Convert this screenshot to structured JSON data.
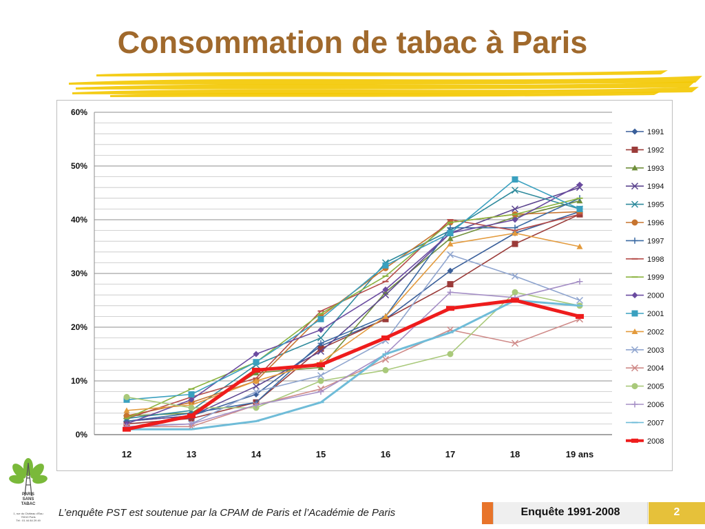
{
  "slide": {
    "title": "Consommation de tabac à Paris",
    "footer_text": "L’enquête PST est soutenue par la CPAM de Paris et l’Académie de Paris",
    "footer_survey": "Enquête 1991-2008",
    "page_number": "2",
    "logo": {
      "line1": "PARIS",
      "line2": "SANS",
      "line3": "TABAC",
      "address": [
        "1, rue du Château d'Eau",
        "75010 Paris",
        "Tél : 01 44 84 29 49"
      ]
    }
  },
  "colors": {
    "title": "#a0692c",
    "brush": "#f3c800",
    "footer_orange": "#e8742a",
    "footer_yellow": "#e6c13a"
  },
  "chart_data": {
    "type": "line",
    "title": "",
    "xlabel": "",
    "ylabel": "",
    "categories": [
      "12",
      "13",
      "14",
      "15",
      "16",
      "17",
      "18",
      "19 ans"
    ],
    "ylim": [
      0,
      60
    ],
    "yticks": [
      0,
      10,
      20,
      30,
      40,
      50,
      60
    ],
    "ytick_labels": [
      "0%",
      "10%",
      "20%",
      "30%",
      "40%",
      "50%",
      "60%"
    ],
    "grid": true,
    "legend": "right",
    "series": [
      {
        "name": "1991",
        "color": "#3a5f9a",
        "marker": "diamond",
        "values": [
          2.5,
          3.5,
          7.5,
          16.5,
          21.5,
          30.5,
          37.5,
          41.5
        ]
      },
      {
        "name": "1992",
        "color": "#9b3b39",
        "marker": "square",
        "values": [
          2.0,
          3.0,
          6.0,
          16.0,
          21.5,
          28.0,
          35.5,
          41.0
        ]
      },
      {
        "name": "1993",
        "color": "#6f8f3a",
        "marker": "triangle",
        "values": [
          3.5,
          4.0,
          11.5,
          12.5,
          26.5,
          36.5,
          40.5,
          43.5
        ]
      },
      {
        "name": "1994",
        "color": "#5d4690",
        "marker": "x",
        "values": [
          2.5,
          3.5,
          9.0,
          15.5,
          26.0,
          37.5,
          42.0,
          46.0
        ]
      },
      {
        "name": "1995",
        "color": "#2e8a9c",
        "marker": "x",
        "values": [
          3.0,
          4.5,
          13.0,
          18.0,
          32.0,
          38.0,
          45.5,
          42.0
        ]
      },
      {
        "name": "1996",
        "color": "#c7742f",
        "marker": "circle",
        "values": [
          3.5,
          6.0,
          10.0,
          22.0,
          31.0,
          39.5,
          41.0,
          41.5
        ]
      },
      {
        "name": "1997",
        "color": "#3b6aa3",
        "marker": "plus",
        "values": [
          2.5,
          4.0,
          6.0,
          17.0,
          22.0,
          38.5,
          38.5,
          44.0
        ]
      },
      {
        "name": "1998",
        "color": "#b54b48",
        "marker": "dash",
        "values": [
          3.0,
          7.0,
          10.5,
          23.0,
          28.5,
          40.0,
          38.0,
          41.0
        ]
      },
      {
        "name": "1999",
        "color": "#8ab33f",
        "marker": "dash",
        "values": [
          3.0,
          8.5,
          13.5,
          22.5,
          29.5,
          39.5,
          41.0,
          44.0
        ]
      },
      {
        "name": "2000",
        "color": "#6a4ba0",
        "marker": "diamond",
        "values": [
          2.0,
          6.5,
          15.0,
          19.5,
          27.0,
          37.5,
          40.0,
          46.5
        ]
      },
      {
        "name": "2001",
        "color": "#3aa0bf",
        "marker": "square",
        "values": [
          6.5,
          7.5,
          13.5,
          21.5,
          31.5,
          37.5,
          47.5,
          42.0
        ]
      },
      {
        "name": "2002",
        "color": "#e39a3c",
        "marker": "triangle",
        "values": [
          4.5,
          5.5,
          10.0,
          13.5,
          22.0,
          35.5,
          37.5,
          35.0
        ]
      },
      {
        "name": "2003",
        "color": "#8fa5cf",
        "marker": "x",
        "values": [
          1.5,
          2.0,
          8.0,
          11.0,
          17.5,
          33.5,
          29.5,
          25.0
        ]
      },
      {
        "name": "2004",
        "color": "#cf8a88",
        "marker": "x",
        "values": [
          1.5,
          1.5,
          5.5,
          8.5,
          14.0,
          19.5,
          17.0,
          21.5
        ]
      },
      {
        "name": "2005",
        "color": "#a9c97a",
        "marker": "circle",
        "values": [
          7.0,
          5.0,
          5.0,
          10.0,
          12.0,
          15.0,
          26.5,
          24.0
        ]
      },
      {
        "name": "2006",
        "color": "#a58fc6",
        "marker": "plus",
        "values": [
          1.5,
          2.0,
          5.5,
          8.0,
          15.0,
          26.5,
          25.5,
          28.5
        ]
      },
      {
        "name": "2007",
        "color": "#6fbcd8",
        "marker": "dash",
        "values": [
          1.0,
          1.0,
          2.5,
          6.0,
          15.0,
          19.0,
          25.0,
          24.0
        ]
      },
      {
        "name": "2008",
        "color": "#ee1c1c",
        "marker": "dash",
        "values": [
          1.0,
          3.5,
          12.0,
          13.0,
          18.0,
          23.5,
          25.0,
          22.0
        ]
      }
    ]
  }
}
